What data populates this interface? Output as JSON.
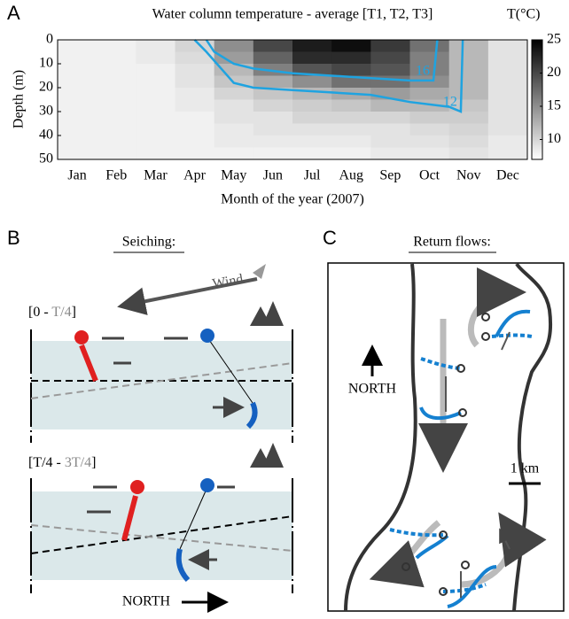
{
  "chart_data": {
    "type": "heatmap",
    "panel_label": "A",
    "title": "Water column temperature - average [T1, T2, T3]",
    "colorbar_label": "T(°C)",
    "x_label": "Month of the year (2007)",
    "y_label": "Depth (m)",
    "categories": [
      "Jan",
      "Feb",
      "Mar",
      "Apr",
      "May",
      "Jun",
      "Jul",
      "Aug",
      "Sep",
      "Oct",
      "Nov",
      "Dec"
    ],
    "ylim": [
      0,
      50
    ],
    "y_inverted": true,
    "yticks": [
      0,
      10,
      20,
      30,
      40,
      50
    ],
    "zlim": [
      7,
      25
    ],
    "zticks": [
      10,
      15,
      20,
      25
    ],
    "colormap": [
      "#ffffff",
      "#000000"
    ],
    "depth_bins": [
      0,
      5,
      10,
      15,
      20,
      25,
      30,
      35,
      40,
      45,
      50
    ],
    "values": [
      [
        8,
        8,
        8.5,
        10,
        15,
        20,
        23,
        24,
        21,
        17,
        12,
        9
      ],
      [
        8,
        8,
        8.5,
        9.5,
        14,
        18,
        22,
        22,
        20,
        16,
        12,
        9
      ],
      [
        8,
        8,
        8,
        9,
        12,
        16,
        19,
        20,
        19,
        16,
        12,
        9
      ],
      [
        8,
        8,
        8,
        9,
        11,
        13,
        15,
        17,
        17,
        15,
        12,
        9
      ],
      [
        8,
        8,
        8,
        8.5,
        10,
        11,
        12,
        13,
        14,
        13,
        12,
        9
      ],
      [
        8,
        8,
        8,
        8.5,
        9,
        10,
        10.5,
        11,
        12,
        12,
        11,
        9
      ],
      [
        8,
        8,
        8,
        8,
        9,
        9,
        10,
        10,
        10,
        10.5,
        10.5,
        9
      ],
      [
        8,
        8,
        8,
        8,
        8.5,
        9,
        9,
        9,
        9,
        9.5,
        10,
        9
      ],
      [
        8,
        8,
        8,
        8,
        8.5,
        8.5,
        8.5,
        8.5,
        9,
        9,
        9.5,
        8.5
      ],
      [
        8,
        8,
        8,
        8,
        8,
        8,
        8,
        8,
        8.5,
        8.5,
        9,
        8.5
      ]
    ],
    "contours": [
      {
        "level": 16,
        "color": "#1fa3e0",
        "x": [
          3.8,
          4.0,
          4.5,
          5,
          6,
          7,
          8,
          9,
          9.6,
          9.7
        ],
        "depths": [
          0,
          5,
          10,
          12,
          14,
          15,
          16,
          17,
          17,
          0
        ]
      },
      {
        "level": 12,
        "color": "#1fa3e0",
        "x": [
          3.5,
          3.8,
          4.5,
          5,
          6,
          7,
          8,
          9,
          10,
          10.3,
          10.35
        ],
        "depths": [
          0,
          5,
          18,
          20,
          21,
          22,
          23,
          26,
          28,
          30,
          0
        ]
      }
    ]
  },
  "panel_b": {
    "label": "B",
    "title": "Seiching:",
    "wind": "Wind",
    "phase_1": [
      "[0 - ",
      "T/4",
      "]"
    ],
    "phase_2": [
      "[T/4 - ",
      "3T/4",
      "]"
    ],
    "north": "NORTH"
  },
  "panel_c": {
    "label": "C",
    "title": "Return flows:",
    "north": "NORTH",
    "scale": "1 km"
  }
}
